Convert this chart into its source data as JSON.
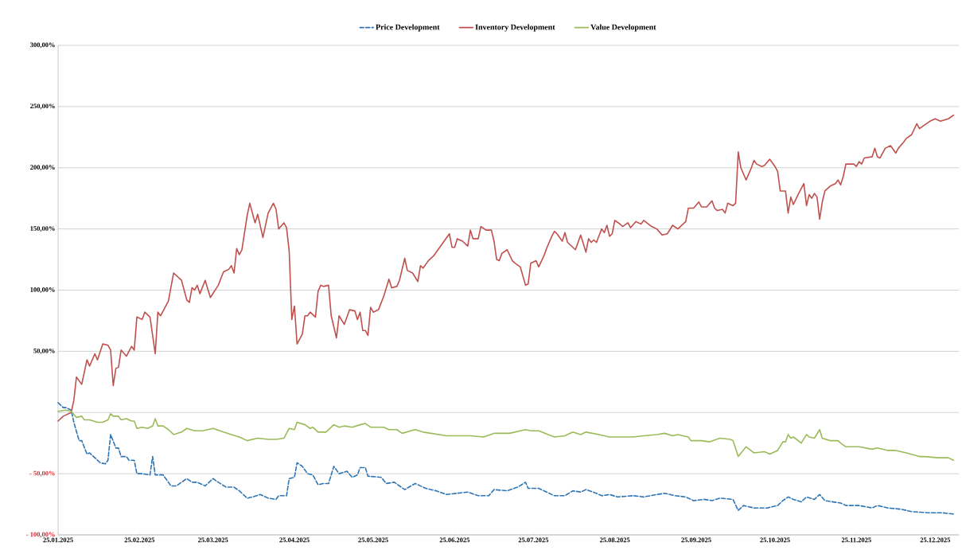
{
  "chart_data": {
    "type": "line",
    "legend": "top",
    "grid": "y",
    "marker": "none",
    "xlim": [
      "2025-01-25",
      "2026-01-03"
    ],
    "xticks": [
      {
        "value": "2025-01-25",
        "label": "25.01.2025"
      },
      {
        "value": "2025-02-25",
        "label": "25.02.2025"
      },
      {
        "value": "2025-03-25",
        "label": "25.03.2025"
      },
      {
        "value": "2025-04-25",
        "label": "25.04.2025"
      },
      {
        "value": "2025-05-25",
        "label": "25.05.2025"
      },
      {
        "value": "2025-06-25",
        "label": "25.06.2025"
      },
      {
        "value": "2025-07-25",
        "label": "25.07.2025"
      },
      {
        "value": "2025-08-25",
        "label": "25.08.2025"
      },
      {
        "value": "2025-09-25",
        "label": "25.09.2025"
      },
      {
        "value": "2025-10-25",
        "label": "25.10.2025"
      },
      {
        "value": "2025-11-25",
        "label": "25.11.2025"
      },
      {
        "value": "2025-12-25",
        "label": "25.12.2025"
      }
    ],
    "ylim": [
      -100,
      300
    ],
    "yticks": [
      {
        "value": -100,
        "label": "- 100,00%"
      },
      {
        "value": -50,
        "label": "- 50,00%"
      },
      {
        "value": 0,
        "label": null
      },
      {
        "value": 50,
        "label": "50,00%"
      },
      {
        "value": 100,
        "label": "100,00%"
      },
      {
        "value": 150,
        "label": "150,00%"
      },
      {
        "value": 200,
        "label": "200,00%"
      },
      {
        "value": 250,
        "label": "250,00%"
      },
      {
        "value": 300,
        "label": "300,00%"
      }
    ],
    "series": [
      {
        "name": "Price Development",
        "color": "#2e75b6",
        "line_style": "dashed",
        "x": [
          "2025-01-25",
          "2025-01-27",
          "2025-01-28",
          "2025-01-30",
          "2025-01-31",
          "2025-02-02",
          "2025-02-03",
          "2025-02-05",
          "2025-02-06",
          "2025-02-08",
          "2025-02-10",
          "2025-02-12",
          "2025-02-13",
          "2025-02-14",
          "2025-02-16",
          "2025-02-17",
          "2025-02-18",
          "2025-02-20",
          "2025-02-21",
          "2025-02-23",
          "2025-02-24",
          "2025-02-26",
          "2025-03-01",
          "2025-03-02",
          "2025-03-03",
          "2025-03-06",
          "2025-03-09",
          "2025-03-11",
          "2025-03-15",
          "2025-03-17",
          "2025-03-19",
          "2025-03-22",
          "2025-03-25",
          "2025-03-27",
          "2025-03-30",
          "2025-04-02",
          "2025-04-04",
          "2025-04-07",
          "2025-04-09",
          "2025-04-12",
          "2025-04-15",
          "2025-04-18",
          "2025-04-19",
          "2025-04-22",
          "2025-04-23",
          "2025-04-25",
          "2025-04-26",
          "2025-04-28",
          "2025-04-30",
          "2025-05-02",
          "2025-05-04",
          "2025-05-06",
          "2025-05-08",
          "2025-05-10",
          "2025-05-12",
          "2025-05-15",
          "2025-05-17",
          "2025-05-19",
          "2025-05-20",
          "2025-05-22",
          "2025-05-23",
          "2025-05-28",
          "2025-05-30",
          "2025-06-02",
          "2025-06-06",
          "2025-06-10",
          "2025-06-14",
          "2025-06-18",
          "2025-06-22",
          "2025-06-26",
          "2025-06-30",
          "2025-07-04",
          "2025-07-08",
          "2025-07-10",
          "2025-07-15",
          "2025-07-19",
          "2025-07-22",
          "2025-07-23",
          "2025-07-27",
          "2025-08-02",
          "2025-08-06",
          "2025-08-09",
          "2025-08-12",
          "2025-08-14",
          "2025-08-18",
          "2025-08-20",
          "2025-08-23",
          "2025-08-26",
          "2025-09-01",
          "2025-09-05",
          "2025-09-10",
          "2025-09-13",
          "2025-09-17",
          "2025-09-21",
          "2025-09-24",
          "2025-09-28",
          "2025-10-01",
          "2025-10-04",
          "2025-10-09",
          "2025-10-11",
          "2025-10-13",
          "2025-10-17",
          "2025-10-22",
          "2025-10-26",
          "2025-10-28",
          "2025-10-30",
          "2025-11-01",
          "2025-11-04",
          "2025-11-06",
          "2025-11-09",
          "2025-11-11",
          "2025-11-13",
          "2025-11-19",
          "2025-11-21",
          "2025-11-26",
          "2025-12-01",
          "2025-12-03",
          "2025-12-07",
          "2025-12-12",
          "2025-12-16",
          "2025-12-23",
          "2025-12-28",
          "2026-01-01"
        ],
        "values": [
          8,
          4,
          4,
          2,
          -8,
          -23,
          -23,
          -34,
          -33,
          -37,
          -41,
          -42,
          -39,
          -18,
          -29,
          -29,
          -36,
          -36,
          -39,
          -39,
          -50,
          -50,
          -51,
          -36,
          -51,
          -51,
          -60,
          -60,
          -54,
          -57,
          -57,
          -60,
          -54,
          -57,
          -61,
          -61,
          -64,
          -70,
          -69,
          -67,
          -70,
          -71,
          -68,
          -68,
          -54,
          -53,
          -41,
          -44,
          -50,
          -51,
          -59,
          -58,
          -58,
          -44,
          -50,
          -48,
          -53,
          -51,
          -45,
          -45,
          -52,
          -53,
          -58,
          -57,
          -63,
          -58,
          -62,
          -64,
          -67,
          -66,
          -65,
          -68,
          -68,
          -63,
          -64,
          -61,
          -57,
          -62,
          -62,
          -68,
          -68,
          -64,
          -65,
          -63,
          -66,
          -68,
          -67,
          -69,
          -68,
          -69,
          -67,
          -66,
          -68,
          -69,
          -72,
          -71,
          -72,
          -70,
          -71,
          -80,
          -76,
          -78,
          -78,
          -76,
          -72,
          -69,
          -71,
          -73,
          -69,
          -71,
          -67,
          -72,
          -74,
          -76,
          -76,
          -78,
          -76,
          -78,
          -79,
          -81,
          -82,
          -82,
          -83
        ]
      },
      {
        "name": "Inventory Development",
        "color": "#c0504d",
        "x": [
          "2025-01-25",
          "2025-01-27",
          "2025-01-30",
          "2025-01-31",
          "2025-02-01",
          "2025-02-03",
          "2025-02-05",
          "2025-02-06",
          "2025-02-08",
          "2025-02-09",
          "2025-02-11",
          "2025-02-13",
          "2025-02-14",
          "2025-02-15",
          "2025-02-16",
          "2025-02-17",
          "2025-02-18",
          "2025-02-20",
          "2025-02-22",
          "2025-02-23",
          "2025-02-24",
          "2025-02-26",
          "2025-02-27",
          "2025-03-01",
          "2025-03-03",
          "2025-03-04",
          "2025-03-05",
          "2025-03-08",
          "2025-03-10",
          "2025-03-13",
          "2025-03-15",
          "2025-03-16",
          "2025-03-17",
          "2025-03-18",
          "2025-03-19",
          "2025-03-20",
          "2025-03-22",
          "2025-03-24",
          "2025-03-27",
          "2025-03-29",
          "2025-03-31",
          "2025-04-01",
          "2025-04-02",
          "2025-04-03",
          "2025-04-04",
          "2025-04-05",
          "2025-04-07",
          "2025-04-08",
          "2025-04-10",
          "2025-04-11",
          "2025-04-13",
          "2025-04-15",
          "2025-04-17",
          "2025-04-18",
          "2025-04-19",
          "2025-04-21",
          "2025-04-22",
          "2025-04-23",
          "2025-04-24",
          "2025-04-25",
          "2025-04-26",
          "2025-04-28",
          "2025-04-29",
          "2025-04-30",
          "2025-05-01",
          "2025-05-03",
          "2025-05-04",
          "2025-05-05",
          "2025-05-06",
          "2025-05-08",
          "2025-05-09",
          "2025-05-11",
          "2025-05-12",
          "2025-05-14",
          "2025-05-16",
          "2025-05-18",
          "2025-05-19",
          "2025-05-20",
          "2025-05-21",
          "2025-05-22",
          "2025-05-23",
          "2025-05-24",
          "2025-05-25",
          "2025-05-27",
          "2025-05-29",
          "2025-05-31",
          "2025-06-01",
          "2025-06-03",
          "2025-06-04",
          "2025-06-06",
          "2025-06-07",
          "2025-06-09",
          "2025-06-11",
          "2025-06-12",
          "2025-06-13",
          "2025-06-15",
          "2025-06-17",
          "2025-06-19",
          "2025-06-21",
          "2025-06-23",
          "2025-06-24",
          "2025-06-25",
          "2025-06-26",
          "2025-06-28",
          "2025-06-30",
          "2025-07-01",
          "2025-07-02",
          "2025-07-04",
          "2025-07-05",
          "2025-07-07",
          "2025-07-09",
          "2025-07-10",
          "2025-07-11",
          "2025-07-12",
          "2025-07-13",
          "2025-07-15",
          "2025-07-17",
          "2025-07-18",
          "2025-07-20",
          "2025-07-22",
          "2025-07-23",
          "2025-07-24",
          "2025-07-26",
          "2025-07-27",
          "2025-07-29",
          "2025-07-30",
          "2025-08-01",
          "2025-08-02",
          "2025-08-03",
          "2025-08-05",
          "2025-08-06",
          "2025-08-07",
          "2025-08-10",
          "2025-08-12",
          "2025-08-14",
          "2025-08-15",
          "2025-08-16",
          "2025-08-17",
          "2025-08-18",
          "2025-08-20",
          "2025-08-21",
          "2025-08-22",
          "2025-08-23",
          "2025-08-24",
          "2025-08-25",
          "2025-08-27",
          "2025-08-28",
          "2025-08-30",
          "2025-08-31",
          "2025-09-02",
          "2025-09-04",
          "2025-09-05",
          "2025-09-08",
          "2025-09-10",
          "2025-09-12",
          "2025-09-14",
          "2025-09-16",
          "2025-09-18",
          "2025-09-21",
          "2025-09-22",
          "2025-09-24",
          "2025-09-26",
          "2025-09-27",
          "2025-09-29",
          "2025-10-01",
          "2025-10-02",
          "2025-10-03",
          "2025-10-05",
          "2025-10-06",
          "2025-10-07",
          "2025-10-09",
          "2025-10-10",
          "2025-10-11",
          "2025-10-12",
          "2025-10-14",
          "2025-10-16",
          "2025-10-17",
          "2025-10-18",
          "2025-10-20",
          "2025-10-21",
          "2025-10-23",
          "2025-10-25",
          "2025-10-26",
          "2025-10-27",
          "2025-10-29",
          "2025-10-30",
          "2025-10-31",
          "2025-11-01",
          "2025-11-03",
          "2025-11-05",
          "2025-11-06",
          "2025-11-07",
          "2025-11-08",
          "2025-11-09",
          "2025-11-10",
          "2025-11-11",
          "2025-11-12",
          "2025-11-13",
          "2025-11-15",
          "2025-11-17",
          "2025-11-18",
          "2025-11-19",
          "2025-11-20",
          "2025-11-21",
          "2025-11-24",
          "2025-11-25",
          "2025-11-26",
          "2025-11-27",
          "2025-11-28",
          "2025-12-01",
          "2025-12-02",
          "2025-12-03",
          "2025-12-04",
          "2025-12-06",
          "2025-12-08",
          "2025-12-10",
          "2025-12-11",
          "2025-12-13",
          "2025-12-14",
          "2025-12-16",
          "2025-12-18",
          "2025-12-19",
          "2025-12-21",
          "2025-12-23",
          "2025-12-25",
          "2025-12-27",
          "2025-12-30",
          "2026-01-01"
        ],
        "values": [
          -7,
          -3,
          0,
          10,
          29,
          23,
          43,
          38,
          48,
          43,
          56,
          55,
          51,
          22,
          36,
          37,
          51,
          46,
          54,
          51,
          78,
          76,
          82,
          78,
          48,
          82,
          79,
          91,
          114,
          108,
          92,
          90,
          102,
          100,
          104,
          97,
          108,
          94,
          104,
          115,
          117,
          120,
          114,
          134,
          129,
          133,
          161,
          171,
          155,
          162,
          143,
          163,
          171,
          166,
          150,
          155,
          151,
          132,
          76,
          87,
          56,
          64,
          79,
          79,
          82,
          78,
          99,
          104,
          103,
          104,
          79,
          61,
          79,
          72,
          84,
          83,
          76,
          82,
          67,
          67,
          63,
          86,
          82,
          84,
          95,
          109,
          102,
          103,
          108,
          126,
          116,
          114,
          107,
          120,
          118,
          124,
          128,
          134,
          140,
          146,
          135,
          135,
          142,
          140,
          136,
          149,
          142,
          142,
          152,
          149,
          149,
          140,
          125,
          124,
          130,
          133,
          124,
          122,
          119,
          104,
          105,
          122,
          124,
          119,
          128,
          134,
          144,
          148,
          146,
          140,
          147,
          139,
          133,
          145,
          131,
          142,
          139,
          141,
          139,
          150,
          147,
          153,
          144,
          146,
          157,
          154,
          152,
          155,
          151,
          156,
          154,
          157,
          152,
          150,
          145,
          146,
          153,
          150,
          156,
          167,
          167,
          172,
          168,
          168,
          173,
          167,
          165,
          166,
          163,
          171,
          169,
          171,
          213,
          200,
          190,
          200,
          206,
          203,
          201,
          202,
          207,
          201,
          197,
          181,
          181,
          163,
          176,
          170,
          179,
          187,
          169,
          178,
          175,
          179,
          176,
          158,
          172,
          181,
          185,
          187,
          190,
          186,
          193,
          203,
          203,
          201,
          205,
          203,
          208,
          209,
          216,
          209,
          208,
          216,
          218,
          212,
          216,
          221,
          224,
          227,
          236,
          232,
          235,
          238,
          240,
          238,
          240,
          243
        ]
      },
      {
        "name": "Value Development",
        "color": "#9bbb59",
        "x": [
          "2025-01-25",
          "2025-01-28",
          "2025-01-30",
          "2025-02-01",
          "2025-02-03",
          "2025-02-04",
          "2025-02-06",
          "2025-02-09",
          "2025-02-11",
          "2025-02-13",
          "2025-02-14",
          "2025-02-15",
          "2025-02-17",
          "2025-02-18",
          "2025-02-20",
          "2025-02-22",
          "2025-02-23",
          "2025-02-24",
          "2025-02-26",
          "2025-02-28",
          "2025-03-02",
          "2025-03-03",
          "2025-03-04",
          "2025-03-06",
          "2025-03-08",
          "2025-03-10",
          "2025-03-13",
          "2025-03-15",
          "2025-03-18",
          "2025-03-21",
          "2025-03-25",
          "2025-03-29",
          "2025-04-01",
          "2025-04-04",
          "2025-04-07",
          "2025-04-11",
          "2025-04-15",
          "2025-04-18",
          "2025-04-21",
          "2025-04-23",
          "2025-04-25",
          "2025-04-26",
          "2025-04-29",
          "2025-05-01",
          "2025-05-02",
          "2025-05-04",
          "2025-05-07",
          "2025-05-10",
          "2025-05-12",
          "2025-05-14",
          "2025-05-17",
          "2025-05-20",
          "2025-05-22",
          "2025-05-24",
          "2025-05-29",
          "2025-05-31",
          "2025-06-03",
          "2025-06-05",
          "2025-06-10",
          "2025-06-13",
          "2025-06-22",
          "2025-07-01",
          "2025-07-06",
          "2025-07-10",
          "2025-07-16",
          "2025-07-22",
          "2025-07-24",
          "2025-07-27",
          "2025-08-02",
          "2025-08-06",
          "2025-08-09",
          "2025-08-12",
          "2025-08-14",
          "2025-08-19",
          "2025-08-23",
          "2025-08-26",
          "2025-09-01",
          "2025-09-05",
          "2025-09-10",
          "2025-09-13",
          "2025-09-16",
          "2025-09-18",
          "2025-09-22",
          "2025-09-23",
          "2025-09-27",
          "2025-09-30",
          "2025-10-04",
          "2025-10-08",
          "2025-10-09",
          "2025-10-11",
          "2025-10-14",
          "2025-10-17",
          "2025-10-21",
          "2025-10-23",
          "2025-10-26",
          "2025-10-28",
          "2025-10-29",
          "2025-10-30",
          "2025-10-31",
          "2025-11-01",
          "2025-11-04",
          "2025-11-06",
          "2025-11-07",
          "2025-11-09",
          "2025-11-11",
          "2025-11-12",
          "2025-11-15",
          "2025-11-18",
          "2025-11-19",
          "2025-11-21",
          "2025-11-26",
          "2025-12-01",
          "2025-12-03",
          "2025-12-07",
          "2025-12-10",
          "2025-12-14",
          "2025-12-19",
          "2025-12-21",
          "2025-12-26",
          "2025-12-28",
          "2025-12-30",
          "2026-01-01"
        ],
        "values": [
          1,
          2,
          1,
          -4,
          -3,
          -6,
          -6,
          -8,
          -8,
          -6,
          -1,
          -3,
          -3,
          -6,
          -5,
          -7,
          -7,
          -13,
          -12,
          -13,
          -11,
          -5,
          -11,
          -11,
          -14,
          -18,
          -16,
          -13,
          -15,
          -15,
          -13,
          -16,
          -18,
          -20,
          -23,
          -21,
          -22,
          -22,
          -21,
          -13,
          -14,
          -8,
          -10,
          -13,
          -12,
          -16,
          -16,
          -10,
          -12,
          -11,
          -12,
          -10,
          -9,
          -12,
          -12,
          -14,
          -14,
          -17,
          -14,
          -16,
          -19,
          -19,
          -20,
          -17,
          -17,
          -14,
          -15,
          -15,
          -20,
          -19,
          -16,
          -18,
          -16,
          -18,
          -20,
          -20,
          -20,
          -19,
          -18,
          -17,
          -19,
          -18,
          -20,
          -23,
          -23,
          -24,
          -21,
          -22,
          -23,
          -36,
          -28,
          -33,
          -32,
          -34,
          -31,
          -24,
          -24,
          -18,
          -21,
          -20,
          -25,
          -18,
          -20,
          -21,
          -14,
          -21,
          -23,
          -23,
          -25,
          -28,
          -28,
          -30,
          -29,
          -31,
          -31,
          -33,
          -36,
          -36,
          -37,
          -37,
          -37,
          -39
        ]
      }
    ]
  }
}
